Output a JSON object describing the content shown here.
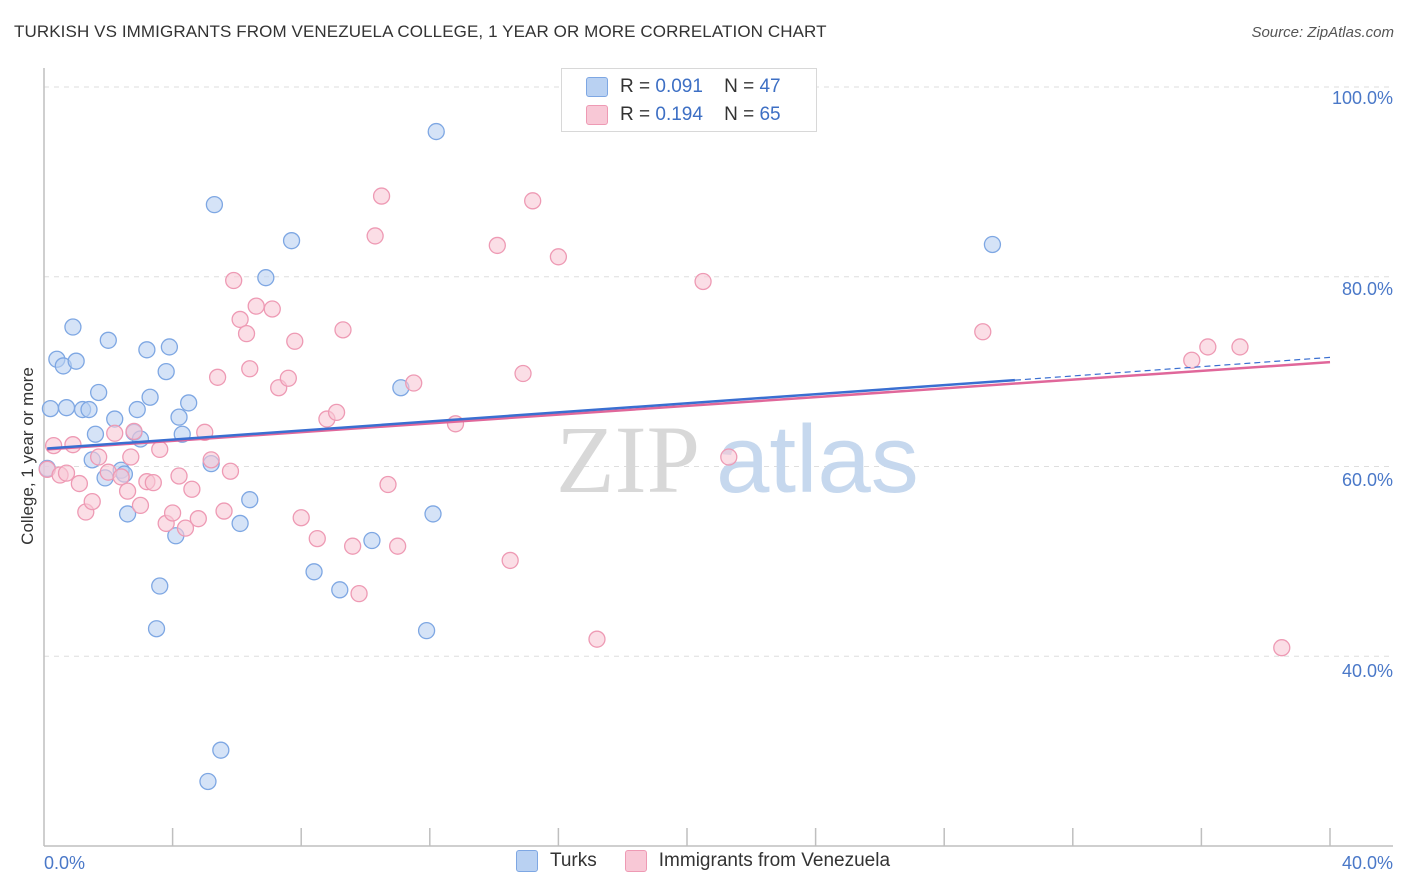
{
  "header": {
    "title": "TURKISH VS IMMIGRANTS FROM VENEZUELA COLLEGE, 1 YEAR OR MORE CORRELATION CHART",
    "source": "Source: ZipAtlas.com"
  },
  "legend": {
    "series": [
      {
        "r_label": "R =",
        "r_value": "0.091",
        "n_label": "N =",
        "n_value": "47"
      },
      {
        "r_label": "R =",
        "r_value": "0.194",
        "n_label": "N =",
        "n_value": "65"
      }
    ]
  },
  "watermark": {
    "zip": "ZIP",
    "atlas": "atlas"
  },
  "colors": {
    "turks_fill": "#b9d1f2",
    "turks_stroke": "#7ea7e3",
    "turks_line": "#3a6fd1",
    "ven_fill": "#f8c8d6",
    "ven_stroke": "#ee9ab4",
    "ven_line": "#e0679a",
    "tick_text": "#4a78c8",
    "grid": "#dedede"
  },
  "chart_data": {
    "type": "scatter",
    "title": "TURKISH VS IMMIGRANTS FROM VENEZUELA COLLEGE, 1 YEAR OR MORE CORRELATION CHART",
    "xlabel": "",
    "ylabel": "College, 1 year or more",
    "xlim": [
      0,
      40
    ],
    "ylim": [
      20,
      102
    ],
    "x_tick_labels": [
      "0.0%",
      "40.0%"
    ],
    "y_ticks": [
      40,
      60,
      80,
      100
    ],
    "y_tick_labels": [
      "40.0%",
      "60.0%",
      "80.0%",
      "100.0%"
    ],
    "grid": true,
    "legend_position": "top-center",
    "series": [
      {
        "name": "Turks",
        "r": 0.091,
        "n": 47,
        "trend": {
          "x": [
            0.1,
            30.2
          ],
          "y": [
            61.9,
            69.1
          ],
          "dashed_to": [
            40,
            71.5
          ]
        },
        "points": [
          [
            0.2,
            66.1
          ],
          [
            0.4,
            71.3
          ],
          [
            0.6,
            70.6
          ],
          [
            0.7,
            66.2
          ],
          [
            0.9,
            74.7
          ],
          [
            1.0,
            71.1
          ],
          [
            1.2,
            66.0
          ],
          [
            1.4,
            66.0
          ],
          [
            1.5,
            60.7
          ],
          [
            1.6,
            63.4
          ],
          [
            1.7,
            67.8
          ],
          [
            1.9,
            58.8
          ],
          [
            2.0,
            73.3
          ],
          [
            2.2,
            65.0
          ],
          [
            2.4,
            59.6
          ],
          [
            2.5,
            59.2
          ],
          [
            2.6,
            55.0
          ],
          [
            2.8,
            63.6
          ],
          [
            2.9,
            66.0
          ],
          [
            3.0,
            62.9
          ],
          [
            3.2,
            72.3
          ],
          [
            3.3,
            67.3
          ],
          [
            3.5,
            42.9
          ],
          [
            3.6,
            47.4
          ],
          [
            3.8,
            70.0
          ],
          [
            3.9,
            72.6
          ],
          [
            4.1,
            52.7
          ],
          [
            4.2,
            65.2
          ],
          [
            4.3,
            63.4
          ],
          [
            4.5,
            66.7
          ],
          [
            5.2,
            60.3
          ],
          [
            5.3,
            87.6
          ],
          [
            5.5,
            30.1
          ],
          [
            5.1,
            26.8
          ],
          [
            6.1,
            54.0
          ],
          [
            6.4,
            56.5
          ],
          [
            6.9,
            79.9
          ],
          [
            7.7,
            83.8
          ],
          [
            8.4,
            48.9
          ],
          [
            9.2,
            47.0
          ],
          [
            10.2,
            52.2
          ],
          [
            11.1,
            68.3
          ],
          [
            11.9,
            42.7
          ],
          [
            12.1,
            55.0
          ],
          [
            12.2,
            95.3
          ],
          [
            29.5,
            83.4
          ],
          [
            0.1,
            59.8
          ]
        ]
      },
      {
        "name": "Immigrants from Venezuela",
        "r": 0.194,
        "n": 65,
        "trend": {
          "x": [
            0.1,
            40
          ],
          "y": [
            61.8,
            71.0
          ]
        },
        "points": [
          [
            0.1,
            59.7
          ],
          [
            0.3,
            62.2
          ],
          [
            0.5,
            59.1
          ],
          [
            0.7,
            59.3
          ],
          [
            0.9,
            62.3
          ],
          [
            1.1,
            58.2
          ],
          [
            1.3,
            55.2
          ],
          [
            1.5,
            56.3
          ],
          [
            1.7,
            61.0
          ],
          [
            2.0,
            59.4
          ],
          [
            2.2,
            63.5
          ],
          [
            2.4,
            58.9
          ],
          [
            2.6,
            57.4
          ],
          [
            2.8,
            63.7
          ],
          [
            3.0,
            55.9
          ],
          [
            3.2,
            58.4
          ],
          [
            3.4,
            58.3
          ],
          [
            3.6,
            61.8
          ],
          [
            3.8,
            54.0
          ],
          [
            4.0,
            55.1
          ],
          [
            4.2,
            59.0
          ],
          [
            4.4,
            53.5
          ],
          [
            4.6,
            57.6
          ],
          [
            4.8,
            54.5
          ],
          [
            5.0,
            63.6
          ],
          [
            5.2,
            60.7
          ],
          [
            5.4,
            69.4
          ],
          [
            5.6,
            55.3
          ],
          [
            5.8,
            59.5
          ],
          [
            5.9,
            79.6
          ],
          [
            6.1,
            75.5
          ],
          [
            6.3,
            74.0
          ],
          [
            6.4,
            70.3
          ],
          [
            6.6,
            76.9
          ],
          [
            7.1,
            76.6
          ],
          [
            7.3,
            68.3
          ],
          [
            7.6,
            69.3
          ],
          [
            7.8,
            73.2
          ],
          [
            8.0,
            54.6
          ],
          [
            8.5,
            52.4
          ],
          [
            8.8,
            65.0
          ],
          [
            9.1,
            65.7
          ],
          [
            9.3,
            74.4
          ],
          [
            9.6,
            51.6
          ],
          [
            9.8,
            46.6
          ],
          [
            10.3,
            84.3
          ],
          [
            10.5,
            88.5
          ],
          [
            10.7,
            58.1
          ],
          [
            11.0,
            51.6
          ],
          [
            11.5,
            68.8
          ],
          [
            12.8,
            64.5
          ],
          [
            14.1,
            83.3
          ],
          [
            14.5,
            50.1
          ],
          [
            14.9,
            69.8
          ],
          [
            15.2,
            88.0
          ],
          [
            16.0,
            82.1
          ],
          [
            17.2,
            41.8
          ],
          [
            20.5,
            79.5
          ],
          [
            21.3,
            61.0
          ],
          [
            29.2,
            74.2
          ],
          [
            35.7,
            71.2
          ],
          [
            36.2,
            72.6
          ],
          [
            37.2,
            72.6
          ],
          [
            38.5,
            40.9
          ],
          [
            2.7,
            61.0
          ]
        ]
      }
    ]
  },
  "bottom_legend": [
    "Turks",
    "Immigrants from Venezuela"
  ]
}
